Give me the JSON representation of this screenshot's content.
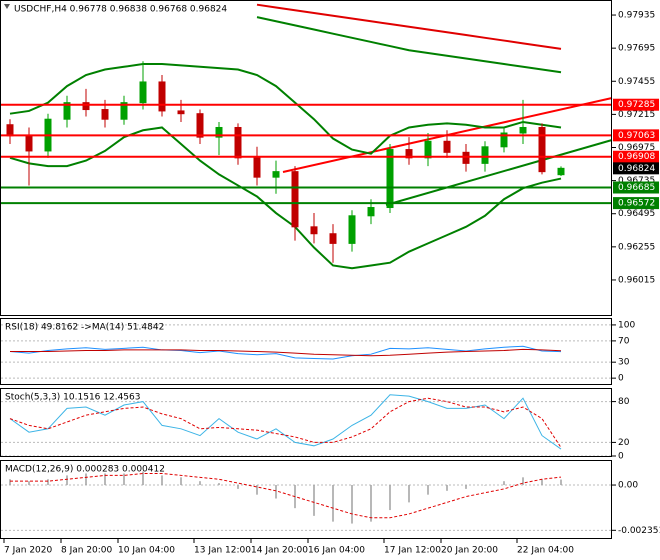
{
  "chart_data": [
    {
      "type": "candlestick",
      "title": "USDCHF,H4  0.96778 0.96838 0.96768 0.96824",
      "categories": [
        "7 Jan 2020",
        null,
        null,
        "8 Jan 20:00",
        null,
        null,
        "10 Jan 04:00",
        null,
        null,
        null,
        "13 Jan 12:00",
        null,
        null,
        "14 Jan 20:00",
        null,
        null,
        "16 Jan 04:00",
        null,
        null,
        null,
        "17 Jan 12:00",
        null,
        null,
        "20 Jan 20:00",
        null,
        null,
        null,
        "22 Jan 04:00",
        null,
        null
      ],
      "open": [
        0.9714,
        0.9706,
        0.9695,
        0.9718,
        0.973,
        0.9725,
        0.9718,
        0.973,
        0.9745,
        0.9724,
        0.9722,
        0.9705,
        0.9712,
        0.969,
        0.9676,
        0.968,
        0.964,
        0.9635,
        0.9628,
        0.9648,
        0.9654,
        0.9696,
        0.969,
        0.9702,
        0.9694,
        0.9686,
        0.9698,
        0.9708,
        0.9712,
        0.96778
      ],
      "high": [
        0.9718,
        0.9712,
        0.9722,
        0.9735,
        0.974,
        0.9732,
        0.9735,
        0.976,
        0.975,
        0.9732,
        0.9725,
        0.9716,
        0.9715,
        0.9698,
        0.9688,
        0.9684,
        0.965,
        0.9642,
        0.9652,
        0.966,
        0.97,
        0.9705,
        0.9708,
        0.971,
        0.97,
        0.9702,
        0.9712,
        0.9732,
        0.9715,
        0.96838
      ],
      "low": [
        0.97,
        0.967,
        0.969,
        0.9712,
        0.972,
        0.9712,
        0.9714,
        0.9725,
        0.972,
        0.9716,
        0.97,
        0.9692,
        0.9685,
        0.967,
        0.9664,
        0.963,
        0.9628,
        0.9614,
        0.9622,
        0.9642,
        0.965,
        0.9685,
        0.9684,
        0.969,
        0.968,
        0.968,
        0.9694,
        0.97,
        0.9678,
        0.96768
      ],
      "close": [
        0.9706,
        0.9695,
        0.9718,
        0.973,
        0.9725,
        0.9718,
        0.973,
        0.9745,
        0.9724,
        0.9722,
        0.9705,
        0.9712,
        0.969,
        0.9676,
        0.968,
        0.964,
        0.9635,
        0.9628,
        0.9648,
        0.9654,
        0.9696,
        0.969,
        0.9702,
        0.9694,
        0.9686,
        0.9698,
        0.9708,
        0.9712,
        0.968,
        0.96824
      ],
      "up_color": "#00a000",
      "down_color": "#c00000",
      "ylim": [
        0.95761,
        0.98044
      ],
      "yticks": [
        0.97935,
        0.97695,
        0.97455,
        0.97215,
        0.96975,
        0.96735,
        0.96495,
        0.96255,
        0.96015
      ],
      "overlays": [
        {
          "color": "#008000",
          "values": [
            0.9722,
            0.9724,
            0.973,
            0.9742,
            0.975,
            0.9754,
            0.9756,
            0.9758,
            0.9758,
            0.9757,
            0.9756,
            0.9755,
            0.9754,
            0.975,
            0.9742,
            0.973,
            0.9718,
            0.9704,
            0.9696,
            0.9693,
            0.9706,
            0.9712,
            0.9714,
            0.9715,
            0.9714,
            0.9712,
            0.9712,
            0.9716,
            0.9714,
            0.9712
          ]
        },
        {
          "color": "#008000",
          "values": [
            0.969,
            0.9686,
            0.9684,
            0.9684,
            0.9688,
            0.9695,
            0.9705,
            0.971,
            0.9712,
            0.97,
            0.9688,
            0.9678,
            0.967,
            0.9662,
            0.965,
            0.964,
            0.9625,
            0.9612,
            0.961,
            0.9612,
            0.9614,
            0.9622,
            0.9628,
            0.9634,
            0.964,
            0.9648,
            0.966,
            0.9668,
            0.9672,
            0.9675
          ]
        },
        {
          "color": "#e00000",
          "values": [
            null,
            null,
            null,
            null,
            null,
            null,
            null,
            null,
            null,
            null,
            null,
            null,
            null,
            0.9801,
            0.9799,
            0.9797,
            0.9795,
            0.9793,
            0.9791,
            0.9789,
            0.9787,
            0.9785,
            0.9783,
            0.9781,
            0.9779,
            0.9777,
            0.9775,
            0.9773,
            0.9771,
            0.9769
          ]
        },
        {
          "color": "#008000",
          "values": [
            null,
            null,
            null,
            null,
            null,
            null,
            null,
            null,
            null,
            null,
            null,
            null,
            null,
            0.9792,
            0.9789,
            0.9786,
            0.9783,
            0.978,
            0.9777,
            0.9774,
            0.9771,
            0.9768,
            0.9766,
            0.9764,
            0.9762,
            0.976,
            0.9758,
            0.9756,
            0.9754,
            0.9752
          ]
        }
      ],
      "levels": [
        {
          "value": 0.97285,
          "color": "#ff0000"
        },
        {
          "value": 0.97063,
          "color": "#ff0000"
        },
        {
          "value": 0.96908,
          "color": "#ff0000"
        },
        {
          "value": 0.96685,
          "color": "#008000"
        },
        {
          "value": 0.96572,
          "color": "#008000"
        }
      ],
      "bid": 0.96824
    },
    {
      "type": "line",
      "title": "RSI(18) 49.8162 ->MA(14) 51.4842",
      "ylim": [
        -11,
        113
      ],
      "yticks": [
        0,
        30,
        70,
        100
      ],
      "series": [
        {
          "color": "#1e90ff",
          "values": [
            50,
            47,
            52,
            55,
            57,
            54,
            56,
            58,
            53,
            52,
            48,
            51,
            46,
            44,
            46,
            38,
            37,
            36,
            42,
            45,
            56,
            55,
            57,
            54,
            51,
            55,
            58,
            60,
            51,
            49.8
          ]
        },
        {
          "color": "#c00000",
          "values": [
            50,
            50,
            50,
            51,
            52,
            52,
            53,
            53,
            53,
            53,
            52,
            52,
            51,
            50,
            49,
            47,
            45,
            44,
            43,
            42,
            43,
            45,
            47,
            49,
            50,
            51,
            52,
            54,
            53,
            51.5
          ]
        }
      ]
    },
    {
      "type": "line",
      "title": "Stoch(5,3,3) 10.1516 12.4563",
      "ylim": [
        0,
        100
      ],
      "yticks": [
        0,
        20,
        80
      ],
      "series": [
        {
          "color": "#3cb4e6",
          "values": [
            55,
            35,
            40,
            70,
            72,
            60,
            75,
            80,
            45,
            40,
            30,
            55,
            35,
            25,
            40,
            20,
            15,
            25,
            45,
            60,
            90,
            88,
            80,
            70,
            70,
            75,
            55,
            85,
            30,
            10.2
          ]
        },
        {
          "color": "#e00000",
          "dashed": true,
          "values": [
            55,
            45,
            40,
            50,
            60,
            65,
            70,
            72,
            62,
            55,
            40,
            42,
            40,
            38,
            33,
            28,
            20,
            20,
            28,
            40,
            65,
            80,
            85,
            80,
            72,
            72,
            65,
            72,
            55,
            12.5
          ]
        }
      ]
    },
    {
      "type": "combo",
      "title": "MACD(12,26,9) 0.000283 0.000412",
      "ylim": [
        -0.00275,
        0.0013
      ],
      "yticks": [
        {
          "value": 0,
          "label": "0.00"
        },
        -0.002351
      ],
      "series": [
        {
          "kind": "bar",
          "color": "#a0a0a0",
          "values": [
            0.0003,
            0.0002,
            0.0003,
            0.0005,
            0.0006,
            0.0006,
            0.0006,
            0.0007,
            0.0005,
            0.0004,
            0.0002,
            0.0001,
            -0.0002,
            -0.0005,
            -0.0007,
            -0.0012,
            -0.0016,
            -0.0019,
            -0.002,
            -0.0019,
            -0.0013,
            -0.0009,
            -0.0005,
            -0.0003,
            -0.0002,
            0.0,
            0.0002,
            0.0004,
            0.0003,
            0.000283
          ]
        },
        {
          "kind": "line",
          "color": "#e00000",
          "dashed": true,
          "values": [
            0.0002,
            0.0002,
            0.0002,
            0.0003,
            0.0004,
            0.0005,
            0.0005,
            0.0006,
            0.0006,
            0.0005,
            0.0004,
            0.0003,
            0.0001,
            -0.0001,
            -0.0003,
            -0.0006,
            -0.0009,
            -0.0012,
            -0.0015,
            -0.0017,
            -0.0017,
            -0.0015,
            -0.0012,
            -0.0009,
            -0.0006,
            -0.0004,
            -0.0002,
            0.0001,
            0.0003,
            0.000412
          ]
        }
      ]
    }
  ]
}
